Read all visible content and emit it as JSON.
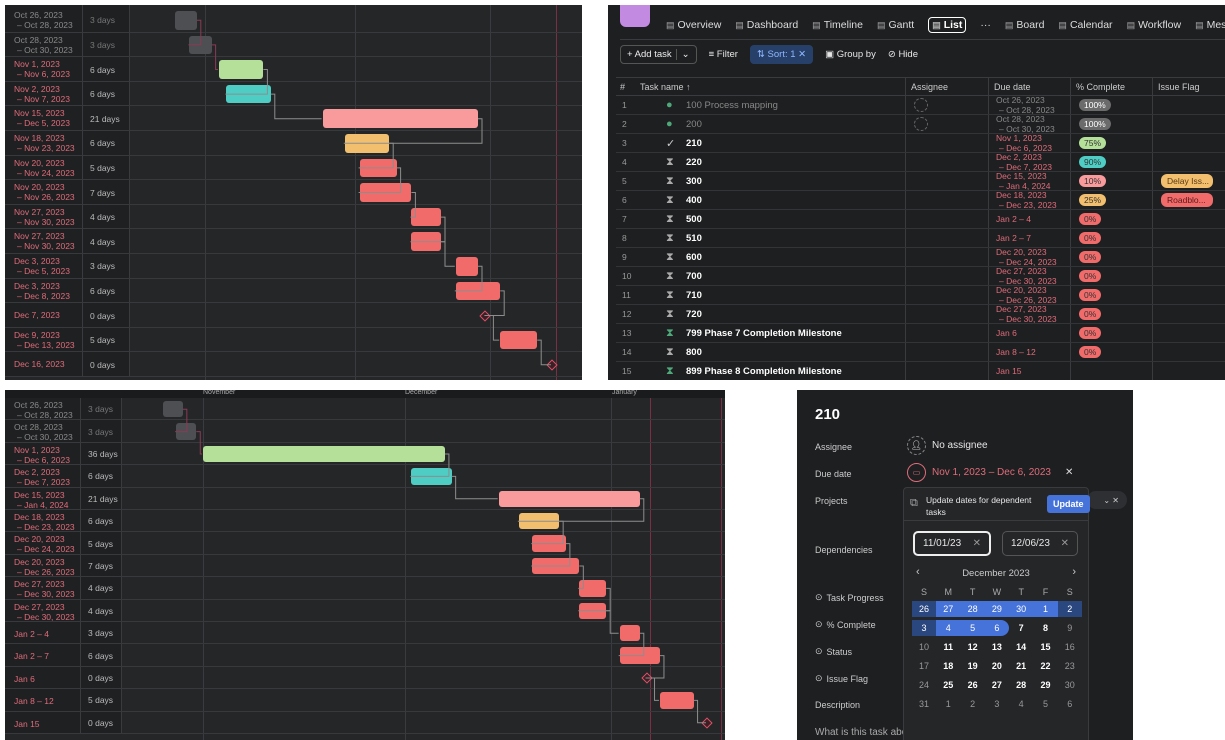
{
  "gantt_top": {
    "colors": {
      "gray": "#4e4f52",
      "green": "#b5e09a",
      "teal": "#4ecdc4",
      "pink": "#f99a9c",
      "orange": "#f2bf6e",
      "red": "#f26b6b"
    },
    "rows": [
      {
        "date": "Oct 26, 2023",
        "date2": "– Oct 28, 2023",
        "dur": "3 days",
        "start": "2023-10-26",
        "end": "2023-10-28",
        "color": "gray",
        "done": true
      },
      {
        "date": "Oct 28, 2023",
        "date2": "– Oct 30, 2023",
        "dur": "3 days",
        "start": "2023-10-28",
        "end": "2023-10-30",
        "color": "gray",
        "done": true
      },
      {
        "date": "Nov 1, 2023",
        "date2": "– Nov 6, 2023",
        "dur": "6 days",
        "start": "2023-11-01",
        "end": "2023-11-06",
        "color": "green"
      },
      {
        "date": "Nov 2, 2023",
        "date2": "– Nov 7, 2023",
        "dur": "6 days",
        "start": "2023-11-02",
        "end": "2023-11-07",
        "color": "teal"
      },
      {
        "date": "Nov 15, 2023",
        "date2": "– Dec 5, 2023",
        "dur": "21 days",
        "start": "2023-11-15",
        "end": "2023-12-05",
        "color": "pink"
      },
      {
        "date": "Nov 18, 2023",
        "date2": "– Nov 23, 2023",
        "dur": "6 days",
        "start": "2023-11-18",
        "end": "2023-11-23",
        "color": "orange"
      },
      {
        "date": "Nov 20, 2023",
        "date2": "– Nov 24, 2023",
        "dur": "5 days",
        "start": "2023-11-20",
        "end": "2023-11-24",
        "color": "red"
      },
      {
        "date": "Nov 20, 2023",
        "date2": "– Nov 26, 2023",
        "dur": "7 days",
        "start": "2023-11-20",
        "end": "2023-11-26",
        "color": "red"
      },
      {
        "date": "Nov 27, 2023",
        "date2": "– Nov 30, 2023",
        "dur": "4 days",
        "start": "2023-11-27",
        "end": "2023-11-30",
        "color": "red"
      },
      {
        "date": "Nov 27, 2023",
        "date2": "– Nov 30, 2023",
        "dur": "4 days",
        "start": "2023-11-27",
        "end": "2023-11-30",
        "color": "red"
      },
      {
        "date": "Dec 3, 2023",
        "date2": "– Dec 5, 2023",
        "dur": "3 days",
        "start": "2023-12-03",
        "end": "2023-12-05",
        "color": "red"
      },
      {
        "date": "Dec 3, 2023",
        "date2": "– Dec 8, 2023",
        "dur": "6 days",
        "start": "2023-12-03",
        "end": "2023-12-08",
        "color": "red"
      },
      {
        "date": "Dec 7, 2023",
        "date2": "",
        "dur": "0 days",
        "start": "2023-12-07",
        "end": "2023-12-07",
        "milestone": true
      },
      {
        "date": "Dec 9, 2023",
        "date2": "– Dec 13, 2023",
        "dur": "5 days",
        "start": "2023-12-09",
        "end": "2023-12-13",
        "color": "red"
      },
      {
        "date": "Dec 16, 2023",
        "date2": "",
        "dur": "0 days",
        "start": "2023-12-16",
        "end": "2023-12-16",
        "milestone": true
      }
    ]
  },
  "gantt_bottom": {
    "months": [
      "November",
      "December",
      "January"
    ],
    "rows": [
      {
        "date": "Oct 26, 2023",
        "date2": "– Oct 28, 2023",
        "dur": "3 days",
        "start": "2023-10-26",
        "end": "2023-10-28",
        "color": "gray",
        "done": true
      },
      {
        "date": "Oct 28, 2023",
        "date2": "– Oct 30, 2023",
        "dur": "3 days",
        "start": "2023-10-28",
        "end": "2023-10-30",
        "color": "gray",
        "done": true
      },
      {
        "date": "Nov 1, 2023",
        "date2": "– Dec 6, 2023",
        "dur": "36 days",
        "start": "2023-11-01",
        "end": "2023-12-06",
        "color": "green"
      },
      {
        "date": "Dec 2, 2023",
        "date2": "– Dec 7, 2023",
        "dur": "6 days",
        "start": "2023-12-02",
        "end": "2023-12-07",
        "color": "teal"
      },
      {
        "date": "Dec 15, 2023",
        "date2": "– Jan 4, 2024",
        "dur": "21 days",
        "start": "2023-12-15",
        "end": "2024-01-04",
        "color": "pink"
      },
      {
        "date": "Dec 18, 2023",
        "date2": "– Dec 23, 2023",
        "dur": "6 days",
        "start": "2023-12-18",
        "end": "2023-12-23",
        "color": "orange"
      },
      {
        "date": "Dec 20, 2023",
        "date2": "– Dec 24, 2023",
        "dur": "5 days",
        "start": "2023-12-20",
        "end": "2023-12-24",
        "color": "red"
      },
      {
        "date": "Dec 20, 2023",
        "date2": "– Dec 26, 2023",
        "dur": "7 days",
        "start": "2023-12-20",
        "end": "2023-12-26",
        "color": "red"
      },
      {
        "date": "Dec 27, 2023",
        "date2": "– Dec 30, 2023",
        "dur": "4 days",
        "start": "2023-12-27",
        "end": "2023-12-30",
        "color": "red"
      },
      {
        "date": "Dec 27, 2023",
        "date2": "– Dec 30, 2023",
        "dur": "4 days",
        "start": "2023-12-27",
        "end": "2023-12-30",
        "color": "red"
      },
      {
        "date": "Jan 2 – 4",
        "date2": "",
        "dur": "3 days",
        "start": "2024-01-02",
        "end": "2024-01-04",
        "color": "red"
      },
      {
        "date": "Jan 2 – 7",
        "date2": "",
        "dur": "6 days",
        "start": "2024-01-02",
        "end": "2024-01-07",
        "color": "red"
      },
      {
        "date": "Jan 6",
        "date2": "",
        "dur": "0 days",
        "start": "2024-01-06",
        "end": "2024-01-06",
        "milestone": true
      },
      {
        "date": "Jan 8 – 12",
        "date2": "",
        "dur": "5 days",
        "start": "2024-01-08",
        "end": "2024-01-12",
        "color": "red"
      },
      {
        "date": "Jan 15",
        "date2": "",
        "dur": "0 days",
        "start": "2024-01-15",
        "end": "2024-01-15",
        "milestone": true
      }
    ]
  },
  "list": {
    "tabs": [
      {
        "label": "Overview",
        "icon": "clipboard-icon"
      },
      {
        "label": "Dashboard",
        "icon": "chart-icon"
      },
      {
        "label": "Timeline",
        "icon": "timeline-icon"
      },
      {
        "label": "Gantt",
        "icon": "gantt-icon"
      },
      {
        "label": "List",
        "icon": "list-icon",
        "active": true
      },
      {
        "label": "···",
        "icon": "more-icon"
      },
      {
        "label": "Board",
        "icon": "board-icon"
      },
      {
        "label": "Calendar",
        "icon": "calendar-icon"
      },
      {
        "label": "Workflow",
        "icon": "workflow-icon"
      },
      {
        "label": "Messag",
        "icon": "message-icon"
      }
    ],
    "toolbar": {
      "add_task": "+ Add task",
      "filter": "Filter",
      "sort": "⇅ Sort: 1",
      "group_by": "Group by",
      "hide": "Hide"
    },
    "columns": [
      "#",
      "Task name ↑",
      "Assignee",
      "Due date",
      "% Complete",
      "Issue Flag"
    ],
    "rows": [
      {
        "n": "1",
        "name": "100 Process mapping",
        "status": "done",
        "due": "Oct 26, 2023",
        "due2": "– Oct 28, 2023",
        "pct": "100%",
        "pc": "#6b6b6b",
        "assignee": true
      },
      {
        "n": "2",
        "name": "200",
        "status": "done",
        "due": "Oct 28, 2023",
        "due2": "– Oct 30, 2023",
        "pct": "100%",
        "pc": "#6b6b6b",
        "assignee": true
      },
      {
        "n": "3",
        "name": "210",
        "status": "check",
        "due": "Nov 1, 2023",
        "due2": "– Dec 6, 2023",
        "pct": "75%",
        "pc": "#b5e09a"
      },
      {
        "n": "4",
        "name": "220",
        "status": "hourglass",
        "due": "Dec 2, 2023",
        "due2": "– Dec 7, 2023",
        "pct": "90%",
        "pc": "#4ecdc4"
      },
      {
        "n": "5",
        "name": "300",
        "status": "hourglass",
        "due": "Dec 15, 2023",
        "due2": "– Jan 4, 2024",
        "pct": "10%",
        "pc": "#f99a9c",
        "flag": "Delay Iss...",
        "fc": "#f2bf6e"
      },
      {
        "n": "6",
        "name": "400",
        "status": "hourglass",
        "due": "Dec 18, 2023",
        "due2": "– Dec 23, 2023",
        "pct": "25%",
        "pc": "#f2bf6e",
        "flag": "Roadblo...",
        "fc": "#f26b6b"
      },
      {
        "n": "7",
        "name": "500",
        "status": "hourglass",
        "due": "Jan 2 – 4",
        "due2": "",
        "pct": "0%",
        "pc": "#f26b6b"
      },
      {
        "n": "8",
        "name": "510",
        "status": "hourglass",
        "due": "Jan 2 – 7",
        "due2": "",
        "pct": "0%",
        "pc": "#f26b6b"
      },
      {
        "n": "9",
        "name": "600",
        "status": "hourglass",
        "due": "Dec 20, 2023",
        "due2": "– Dec 24, 2023",
        "pct": "0%",
        "pc": "#f26b6b"
      },
      {
        "n": "10",
        "name": "700",
        "status": "hourglass",
        "due": "Dec 27, 2023",
        "due2": "– Dec 30, 2023",
        "pct": "0%",
        "pc": "#f26b6b"
      },
      {
        "n": "11",
        "name": "710",
        "status": "hourglass",
        "due": "Dec 20, 2023",
        "due2": "– Dec 26, 2023",
        "pct": "0%",
        "pc": "#f26b6b"
      },
      {
        "n": "12",
        "name": "720",
        "status": "hourglass",
        "due": "Dec 27, 2023",
        "due2": "– Dec 30, 2023",
        "pct": "0%",
        "pc": "#f26b6b"
      },
      {
        "n": "13",
        "name": "799 Phase 7 Completion Milestone",
        "status": "milestone",
        "due": "Jan 6",
        "due2": "",
        "pct": "0%",
        "pc": "#f26b6b"
      },
      {
        "n": "14",
        "name": "800",
        "status": "hourglass",
        "due": "Jan 8 – 12",
        "due2": "",
        "pct": "0%",
        "pc": "#f26b6b"
      },
      {
        "n": "15",
        "name": "899 Phase 8 Completion Milestone",
        "status": "milestone",
        "due": "Jan 15",
        "due2": "",
        "pct": "",
        "pc": ""
      }
    ]
  },
  "detail": {
    "title": "210",
    "assignee_label": "Assignee",
    "assignee_value": "No assignee",
    "due_label": "Due date",
    "due_value": "Nov 1, 2023 – Dec 6, 2023",
    "projects_label": "Projects",
    "dependencies_label": "Dependencies",
    "task_progress": "Task Progress",
    "pct_complete": "% Complete",
    "status": "Status",
    "issue_flag": "Issue Flag",
    "description": "Description",
    "description_placeholder": "What is this task abo",
    "popover": {
      "message": "Update dates for dependent tasks",
      "update": "Update",
      "start": "11/01/23",
      "end": "12/06/23",
      "month": "December 2023",
      "weekdays": [
        "S",
        "M",
        "T",
        "W",
        "T",
        "F",
        "S"
      ],
      "days": [
        [
          "26",
          "27",
          "28",
          "29",
          "30",
          "1",
          "2"
        ],
        [
          "3",
          "4",
          "5",
          "6",
          "7",
          "8",
          "9"
        ],
        [
          "10",
          "11",
          "12",
          "13",
          "14",
          "15",
          "16"
        ],
        [
          "17",
          "18",
          "19",
          "20",
          "21",
          "22",
          "23"
        ],
        [
          "24",
          "25",
          "26",
          "27",
          "28",
          "29",
          "30"
        ],
        [
          "31",
          "1",
          "2",
          "3",
          "4",
          "5",
          "6"
        ]
      ],
      "selected_range": [
        "2023-11-26",
        "2023-12-06"
      ]
    }
  }
}
